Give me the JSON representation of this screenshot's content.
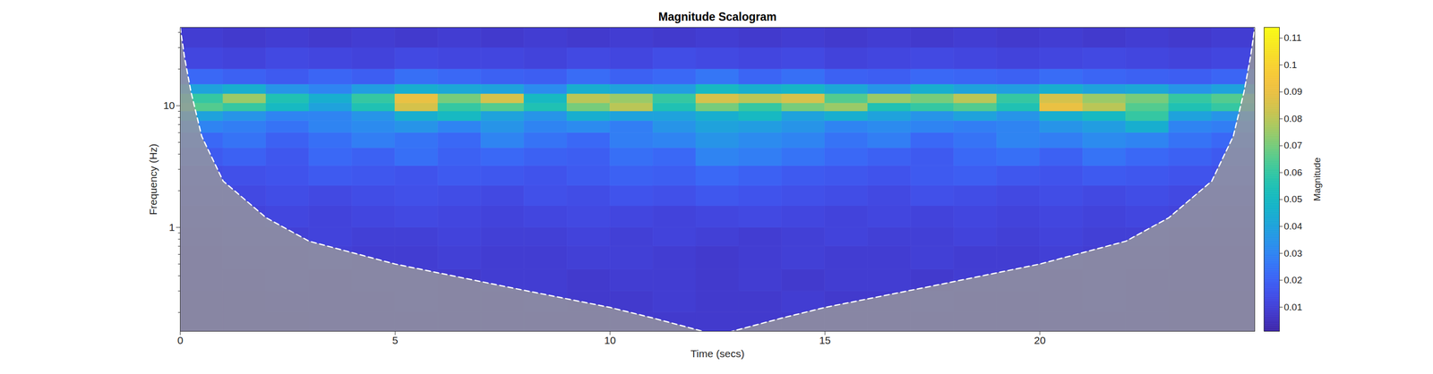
{
  "chart_data": {
    "type": "heatmap",
    "title": "Magnitude Scalogram",
    "xlabel": "Time (secs)",
    "ylabel": "Frequency (Hz)",
    "log": "y",
    "xlim": [
      0,
      25
    ],
    "xticks": [
      0,
      5,
      10,
      15,
      20
    ],
    "ylim": [
      0.14,
      44
    ],
    "yticks": [
      1,
      10
    ],
    "yminorticks": [
      0.2,
      0.3,
      0.4,
      0.5,
      0.6,
      0.7,
      0.8,
      0.9,
      2,
      3,
      4,
      5,
      6,
      7,
      8,
      9,
      20,
      30,
      40
    ],
    "time_edges": [
      0,
      1,
      2,
      3,
      4,
      5,
      6,
      7,
      8,
      9,
      10,
      11,
      12,
      13,
      14,
      15,
      16,
      17,
      18,
      19,
      20,
      21,
      22,
      23,
      24,
      25
    ],
    "frequency_edges": [
      0.14,
      0.2,
      0.3,
      0.45,
      0.7,
      1,
      1.5,
      2.2,
      3.2,
      4.5,
      6,
      7.5,
      9,
      10.5,
      12.5,
      15,
      20,
      30,
      44
    ],
    "magnitude": [
      [
        0.007,
        0.007,
        0.007,
        0.008,
        0.008,
        0.008,
        0.008,
        0.008,
        0.008,
        0.008,
        0.008,
        0.008,
        0.008,
        0.008,
        0.008,
        0.008,
        0.008,
        0.008,
        0.008,
        0.008,
        0.008,
        0.008,
        0.008,
        0.007,
        0.007
      ],
      [
        0.007,
        0.007,
        0.008,
        0.008,
        0.008,
        0.009,
        0.008,
        0.008,
        0.009,
        0.008,
        0.008,
        0.009,
        0.008,
        0.008,
        0.009,
        0.008,
        0.008,
        0.009,
        0.008,
        0.008,
        0.008,
        0.009,
        0.008,
        0.007,
        0.007
      ],
      [
        0.008,
        0.008,
        0.009,
        0.008,
        0.009,
        0.009,
        0.008,
        0.009,
        0.009,
        0.008,
        0.009,
        0.009,
        0.008,
        0.009,
        0.008,
        0.009,
        0.009,
        0.008,
        0.009,
        0.009,
        0.008,
        0.009,
        0.008,
        0.008,
        0.008
      ],
      [
        0.008,
        0.009,
        0.009,
        0.01,
        0.009,
        0.009,
        0.01,
        0.009,
        0.009,
        0.01,
        0.01,
        0.009,
        0.008,
        0.009,
        0.01,
        0.009,
        0.009,
        0.01,
        0.009,
        0.009,
        0.01,
        0.009,
        0.009,
        0.008,
        0.008
      ],
      [
        0.009,
        0.01,
        0.01,
        0.011,
        0.01,
        0.01,
        0.011,
        0.01,
        0.01,
        0.011,
        0.01,
        0.011,
        0.01,
        0.009,
        0.01,
        0.011,
        0.01,
        0.01,
        0.011,
        0.01,
        0.011,
        0.01,
        0.01,
        0.009,
        0.009
      ],
      [
        0.01,
        0.011,
        0.012,
        0.011,
        0.012,
        0.013,
        0.012,
        0.011,
        0.012,
        0.013,
        0.012,
        0.011,
        0.012,
        0.013,
        0.012,
        0.011,
        0.012,
        0.011,
        0.012,
        0.011,
        0.012,
        0.011,
        0.012,
        0.011,
        0.01
      ],
      [
        0.012,
        0.013,
        0.014,
        0.013,
        0.014,
        0.015,
        0.014,
        0.013,
        0.015,
        0.014,
        0.016,
        0.015,
        0.017,
        0.016,
        0.015,
        0.014,
        0.013,
        0.015,
        0.014,
        0.013,
        0.014,
        0.013,
        0.014,
        0.013,
        0.012
      ],
      [
        0.014,
        0.015,
        0.016,
        0.018,
        0.017,
        0.016,
        0.018,
        0.017,
        0.016,
        0.018,
        0.02,
        0.019,
        0.022,
        0.02,
        0.018,
        0.017,
        0.016,
        0.018,
        0.019,
        0.017,
        0.016,
        0.018,
        0.017,
        0.016,
        0.015
      ],
      [
        0.018,
        0.02,
        0.017,
        0.022,
        0.02,
        0.024,
        0.02,
        0.022,
        0.02,
        0.019,
        0.024,
        0.022,
        0.03,
        0.028,
        0.025,
        0.022,
        0.02,
        0.018,
        0.022,
        0.024,
        0.02,
        0.025,
        0.022,
        0.02,
        0.018
      ],
      [
        0.022,
        0.025,
        0.02,
        0.024,
        0.028,
        0.025,
        0.022,
        0.03,
        0.025,
        0.022,
        0.028,
        0.03,
        0.035,
        0.032,
        0.03,
        0.025,
        0.028,
        0.022,
        0.025,
        0.03,
        0.028,
        0.032,
        0.03,
        0.025,
        0.022
      ],
      [
        0.03,
        0.028,
        0.025,
        0.03,
        0.032,
        0.035,
        0.03,
        0.035,
        0.03,
        0.032,
        0.028,
        0.035,
        0.04,
        0.038,
        0.035,
        0.03,
        0.032,
        0.03,
        0.028,
        0.03,
        0.035,
        0.038,
        0.045,
        0.03,
        0.028
      ],
      [
        0.04,
        0.035,
        0.03,
        0.03,
        0.035,
        0.045,
        0.05,
        0.04,
        0.035,
        0.045,
        0.04,
        0.04,
        0.045,
        0.05,
        0.04,
        0.045,
        0.04,
        0.035,
        0.04,
        0.035,
        0.045,
        0.05,
        0.06,
        0.04,
        0.035
      ],
      [
        0.065,
        0.06,
        0.05,
        0.04,
        0.055,
        0.085,
        0.06,
        0.065,
        0.055,
        0.07,
        0.08,
        0.055,
        0.07,
        0.06,
        0.07,
        0.075,
        0.055,
        0.06,
        0.065,
        0.055,
        0.09,
        0.08,
        0.065,
        0.055,
        0.06
      ],
      [
        0.06,
        0.075,
        0.055,
        0.045,
        0.06,
        0.09,
        0.07,
        0.085,
        0.05,
        0.08,
        0.075,
        0.06,
        0.085,
        0.08,
        0.085,
        0.065,
        0.075,
        0.07,
        0.08,
        0.06,
        0.085,
        0.075,
        0.07,
        0.06,
        0.065
      ],
      [
        0.04,
        0.045,
        0.035,
        0.03,
        0.038,
        0.045,
        0.042,
        0.04,
        0.032,
        0.045,
        0.04,
        0.038,
        0.05,
        0.045,
        0.048,
        0.042,
        0.035,
        0.045,
        0.04,
        0.038,
        0.045,
        0.04,
        0.042,
        0.035,
        0.04
      ],
      [
        0.022,
        0.02,
        0.018,
        0.021,
        0.019,
        0.024,
        0.022,
        0.02,
        0.019,
        0.023,
        0.02,
        0.022,
        0.026,
        0.021,
        0.024,
        0.02,
        0.019,
        0.022,
        0.021,
        0.02,
        0.023,
        0.021,
        0.02,
        0.019,
        0.021
      ],
      [
        0.012,
        0.011,
        0.013,
        0.012,
        0.011,
        0.013,
        0.012,
        0.012,
        0.011,
        0.013,
        0.012,
        0.014,
        0.013,
        0.012,
        0.013,
        0.011,
        0.012,
        0.013,
        0.012,
        0.011,
        0.012,
        0.013,
        0.012,
        0.011,
        0.012
      ],
      [
        0.009,
        0.008,
        0.009,
        0.008,
        0.009,
        0.008,
        0.009,
        0.008,
        0.009,
        0.008,
        0.009,
        0.008,
        0.009,
        0.008,
        0.009,
        0.008,
        0.009,
        0.008,
        0.009,
        0.008,
        0.009,
        0.008,
        0.009,
        0.008,
        0.009
      ]
    ],
    "cone_of_influence": {
      "x": [
        0,
        0.1,
        0.25,
        0.5,
        1,
        2,
        3,
        5,
        7.5,
        10,
        11,
        12,
        12.5,
        13,
        14,
        15,
        17.5,
        20,
        22,
        23,
        24,
        24.5,
        24.75,
        24.9,
        25
      ],
      "y": [
        44,
        25,
        13,
        5.6,
        2.4,
        1.2,
        0.77,
        0.5,
        0.33,
        0.22,
        0.18,
        0.145,
        0.13,
        0.145,
        0.18,
        0.22,
        0.33,
        0.5,
        0.77,
        1.2,
        2.4,
        5.6,
        13,
        25,
        44
      ]
    },
    "colorbar": {
      "label": "Magnitude",
      "range": [
        0.001,
        0.114
      ],
      "ticks": [
        0.01,
        0.02,
        0.03,
        0.04,
        0.05,
        0.06,
        0.07,
        0.08,
        0.09,
        0.1,
        0.11
      ]
    }
  }
}
